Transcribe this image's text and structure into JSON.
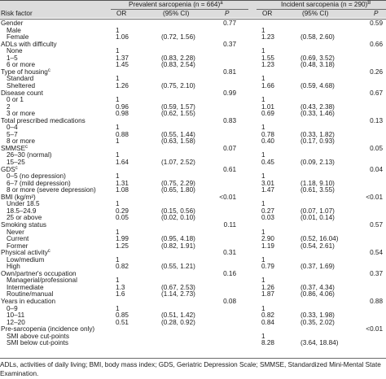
{
  "header": {
    "prevalent_group": "Prevalent sarcopenia (n = 664)",
    "prevalent_sup": "a",
    "incident_group": "Incident sarcopenia (n = 290)",
    "incident_sup": "B",
    "risk_factor": "Risk factor",
    "or": "OR",
    "ci": "(95% CI)",
    "p": "P"
  },
  "rows": [
    {
      "label": "Gender",
      "indent": false,
      "p1": "0.77",
      "p2": "0.59"
    },
    {
      "label": "Male",
      "indent": true,
      "or1": "1",
      "or2": "1"
    },
    {
      "label": "Female",
      "indent": true,
      "or1": "1.06",
      "ci1": "(0.72, 1.56)",
      "or2": "1.23",
      "ci2": "(0.58, 2.60)"
    },
    {
      "label": "ADLs with difficulty",
      "indent": false,
      "p1": "0.37",
      "p2": "0.66"
    },
    {
      "label": "None",
      "indent": true,
      "or1": "1",
      "or2": "1"
    },
    {
      "label": "1–5",
      "indent": true,
      "or1": "1.37",
      "ci1": "(0.83, 2.28)",
      "or2": "1.55",
      "ci2": "(0.69, 3.52)"
    },
    {
      "label": "6 or more",
      "indent": true,
      "or1": "1.45",
      "ci1": "(0.83, 2.54)",
      "or2": "1.23",
      "ci2": "(0.48, 3.18)"
    },
    {
      "label": "Type of housing",
      "sup": "c",
      "indent": false,
      "p1": "0.81",
      "p2": "0.26"
    },
    {
      "label": "Standard",
      "indent": true,
      "or1": "1",
      "or2": "1"
    },
    {
      "label": "Sheltered",
      "indent": true,
      "or1": "1.26",
      "ci1": "(0.75, 2.10)",
      "or2": "1.66",
      "ci2": "(0.59, 4.68)"
    },
    {
      "label": "Disease count",
      "indent": false,
      "p1": "0.99",
      "p2": "0.67"
    },
    {
      "label": "0 or 1",
      "indent": true,
      "or1": "1",
      "or2": "1"
    },
    {
      "label": "2",
      "indent": true,
      "or1": "0.96",
      "ci1": "(0.59, 1.57)",
      "or2": "1.01",
      "ci2": "(0.43, 2.38)"
    },
    {
      "label": "3 or more",
      "indent": true,
      "or1": "0.98",
      "ci1": "(0.62, 1.55)",
      "or2": "0.69",
      "ci2": "(0.33, 1.46)"
    },
    {
      "label": "Total prescribed medications",
      "indent": false,
      "p1": "0.83",
      "p2": "0.13"
    },
    {
      "label": "0–4",
      "indent": true,
      "or1": "1",
      "or2": "1"
    },
    {
      "label": "5–7",
      "indent": true,
      "or1": "0.88",
      "ci1": "(0.55, 1.44)",
      "or2": "0.78",
      "ci2": "(0.33, 1.82)"
    },
    {
      "label": "8 or more",
      "indent": true,
      "or1": "1",
      "ci1": "(0.63, 1.58)",
      "or2": "0.40",
      "ci2": "(0.17, 0.93)"
    },
    {
      "label": "SMMSE",
      "sup": "c",
      "indent": false,
      "p1": "0.07",
      "p2": "0.05"
    },
    {
      "label": "26–30 (normal)",
      "indent": true,
      "or1": "1",
      "or2": "1"
    },
    {
      "label": "15–25",
      "indent": true,
      "or1": "1.64",
      "ci1": "(1.07, 2.52)",
      "or2": "0.45",
      "ci2": "(0.09, 2.13)"
    },
    {
      "label": "GDS",
      "sup": "c",
      "indent": false,
      "p1": "0.61",
      "p2": "0.04"
    },
    {
      "label": "0–5 (no depression)",
      "indent": true,
      "or1": "1",
      "or2": "1"
    },
    {
      "label": "6–7 (mild depression)",
      "indent": true,
      "or1": "1.31",
      "ci1": "(0.75, 2.29)",
      "or2": "3.01",
      "ci2": "(1.18, 9.10)"
    },
    {
      "label": "8 or more (severe depression)",
      "indent": true,
      "or1": "1.08",
      "ci1": "(0.65, 1.80)",
      "or2": "1.47",
      "ci2": "(0.61, 3.55)"
    },
    {
      "label": "BMI (kg/m²)",
      "indent": false,
      "p1": "<0.01",
      "p2": "<0.01"
    },
    {
      "label": "Under 18.5",
      "indent": true,
      "or1": "1",
      "or2": "1"
    },
    {
      "label": "18.5–24.9",
      "indent": true,
      "or1": "0.29",
      "ci1": "(0.15, 0.56)",
      "or2": "0.27",
      "ci2": "(0.07, 1.07)"
    },
    {
      "label": "25 or above",
      "indent": true,
      "or1": "0.05",
      "ci1": "(0.02, 0.10)",
      "or2": "0.03",
      "ci2": "(0.01, 0.14)"
    },
    {
      "label": "Smoking status",
      "indent": false,
      "p1": "0.11",
      "p2": "0.57"
    },
    {
      "label": "Never",
      "indent": true,
      "or1": "1",
      "or2": "1"
    },
    {
      "label": "Current",
      "indent": true,
      "or1": "1.99",
      "ci1": "(0.95, 4.18)",
      "or2": "2.90",
      "ci2": "(0.52, 16.04)"
    },
    {
      "label": "Former",
      "indent": true,
      "or1": "1.25",
      "ci1": "(0.82, 1.91)",
      "or2": "1.19",
      "ci2": "(0.54, 2.61)"
    },
    {
      "label": "Physical activity",
      "sup": "c",
      "indent": false,
      "p1": "0.31",
      "p2": "0.54"
    },
    {
      "label": "Low/medium",
      "indent": true,
      "or1": "1",
      "or2": "1"
    },
    {
      "label": "High",
      "indent": true,
      "or1": "0.82",
      "ci1": "(0.55, 1.21)",
      "or2": "0.79",
      "ci2": "(0.37, 1.69)"
    },
    {
      "label": "Own/partner's occupation",
      "indent": false,
      "p1": "0.16",
      "p2": "0.37"
    },
    {
      "label": "Managerial/professional",
      "indent": true,
      "or1": "1",
      "or2": "1"
    },
    {
      "label": "Intermediate",
      "indent": true,
      "or1": "1.3",
      "ci1": "(0.67, 2.53)",
      "or2": "1.26",
      "ci2": "(0.37, 4.34)"
    },
    {
      "label": "Routine/manual",
      "indent": true,
      "or1": "1.6",
      "ci1": "(1.14, 2.73)",
      "or2": "1.87",
      "ci2": "(0.86, 4.06)"
    },
    {
      "label": "Years in education",
      "indent": false,
      "p1": "0.08",
      "p2": "0.88"
    },
    {
      "label": "0–9",
      "indent": true,
      "or1": "1",
      "or2": "1"
    },
    {
      "label": "10–11",
      "indent": true,
      "or1": "0.85",
      "ci1": "(0.51, 1.42)",
      "or2": "0.82",
      "ci2": "(0.33, 1.98)"
    },
    {
      "label": "12–20",
      "indent": true,
      "or1": "0.51",
      "ci1": "(0.28, 0.92)",
      "or2": "0.84",
      "ci2": "(0.35, 2.02)"
    },
    {
      "label": "Pre-sarcopenia (incidence only)",
      "indent": false,
      "p2": "<0.01"
    },
    {
      "label": "SMI above cut-points",
      "indent": true,
      "or2": "1"
    },
    {
      "label": "SMI below cut-points",
      "indent": true,
      "or2": "8.28",
      "ci2": "(3.64, 18.84)"
    }
  ],
  "footnote": "ADLs, activities of daily living; BMI, body mass index; GDS, Geriatric Depression Scale; SMMSE, Standardized Mini-Mental State Examination."
}
